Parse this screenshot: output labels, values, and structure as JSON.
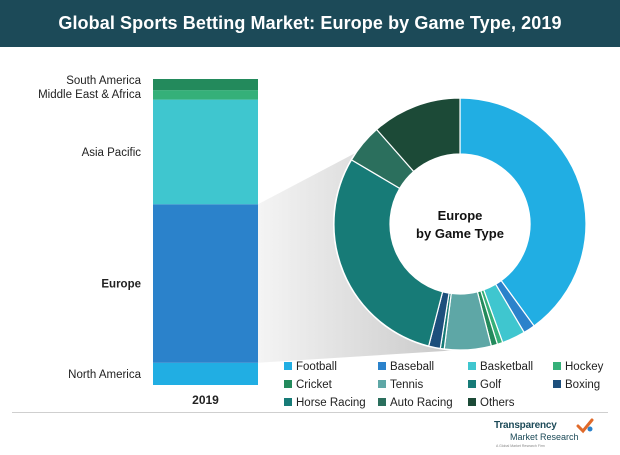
{
  "title": "Global Sports Betting Market: Europe by Game Type, 2019",
  "colors": {
    "header_bg": "#1c4a58",
    "north_america": "#21aee3",
    "europe": "#2b82cb",
    "asia_pacific": "#3fc6cf",
    "mea": "#35b079",
    "south_america": "#238a5c",
    "football": "#21aee3",
    "baseball": "#2b82cb",
    "basketball": "#3fc6cf",
    "hockey": "#35b079",
    "cricket": "#238a5c",
    "tennis": "#5ea7a6",
    "golf": "#177b77",
    "boxing": "#1d4f7c",
    "horse_racing": "#177b77",
    "auto_racing": "#2b6f5d",
    "others": "#1c4a37"
  },
  "chart_data": [
    {
      "type": "bar",
      "stacked": true,
      "categories": [
        "2019"
      ],
      "series": [
        {
          "name": "North America",
          "values": [
            7
          ],
          "color": "#21aee3"
        },
        {
          "name": "Europe",
          "values": [
            50
          ],
          "color": "#2b82cb"
        },
        {
          "name": "Asia Pacific",
          "values": [
            33
          ],
          "color": "#3fc6cf"
        },
        {
          "name": "Middle East & Africa",
          "values": [
            3
          ],
          "color": "#35b079"
        },
        {
          "name": "South America",
          "values": [
            3.5
          ],
          "color": "#238a5c"
        }
      ],
      "highlight": "Europe"
    },
    {
      "type": "pie",
      "donut": true,
      "center_label": [
        "Europe",
        "by Game Type"
      ],
      "slices": [
        {
          "name": "Football",
          "value": 40,
          "color": "#21aee3"
        },
        {
          "name": "Baseball",
          "value": 1.5,
          "color": "#2b82cb"
        },
        {
          "name": "Basketball",
          "value": 3,
          "color": "#3fc6cf"
        },
        {
          "name": "Hockey",
          "value": 0.7,
          "color": "#35b079"
        },
        {
          "name": "Cricket",
          "value": 0.8,
          "color": "#238a5c"
        },
        {
          "name": "Tennis",
          "value": 6,
          "color": "#5ea7a6"
        },
        {
          "name": "Golf",
          "value": 0.5,
          "color": "#177b77"
        },
        {
          "name": "Boxing",
          "value": 1.5,
          "color": "#1d4f7c"
        },
        {
          "name": "Horse Racing",
          "value": 29.5,
          "color": "#177b77"
        },
        {
          "name": "Auto Racing",
          "value": 5,
          "color": "#2b6f5d"
        },
        {
          "name": "Others",
          "value": 11.5,
          "color": "#1c4a37"
        }
      ],
      "legend": [
        "Football",
        "Baseball",
        "Basketball",
        "Hockey",
        "Cricket",
        "Tennis",
        "Golf",
        "Boxing",
        "Horse Racing",
        "Auto Racing",
        "Others"
      ]
    }
  ],
  "logo": {
    "brand": "Transparency",
    "sub": "Market Research",
    "tag": "A Global Market Research Firm",
    "icon": "checkmark-logo-icon"
  }
}
